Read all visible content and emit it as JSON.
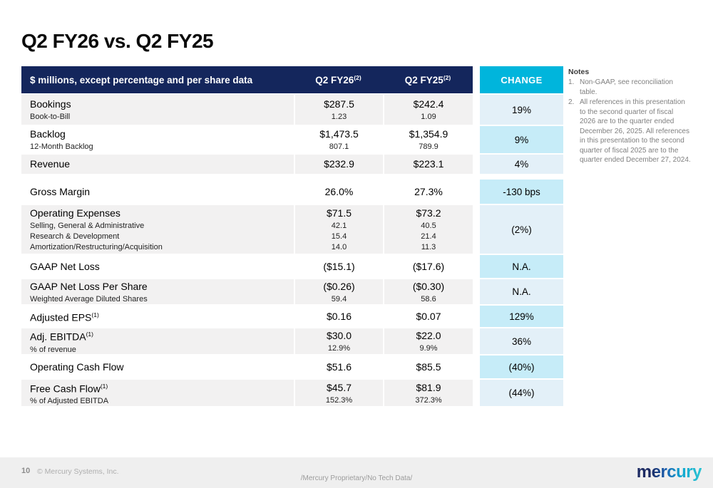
{
  "slide": {
    "title": "Q2 FY26 vs. Q2 FY25",
    "table": {
      "header": {
        "label": "$ millions, except percentage and per share data",
        "col1": "Q2 FY26",
        "col1_sup": "(2)",
        "col2": "Q2 FY25",
        "col2_sup": "(2)",
        "change": "CHANGE"
      },
      "rows": [
        {
          "label": "Bookings",
          "v1": "$287.5",
          "v2": "$242.4",
          "change": "19%",
          "subs": [
            {
              "label": "Book-to-Bill",
              "v1": "1.23",
              "v2": "1.09"
            }
          ]
        },
        {
          "label": "Backlog",
          "v1": "$1,473.5",
          "v2": "$1,354.9",
          "change": "9%",
          "subs": [
            {
              "label": "12-Month Backlog",
              "v1": "807.1",
              "v2": "789.9"
            }
          ]
        },
        {
          "label": "Revenue",
          "v1": "$232.9",
          "v2": "$223.1",
          "change": "4%",
          "subs": []
        },
        {
          "label": "Gross Margin",
          "v1": "26.0%",
          "v2": "27.3%",
          "change": "-130 bps",
          "subs": []
        },
        {
          "label": "Operating Expenses",
          "v1": "$71.5",
          "v2": "$73.2",
          "change": "(2%)",
          "subs": [
            {
              "label": "Selling, General & Administrative",
              "v1": "42.1",
              "v2": "40.5"
            },
            {
              "label": "Research & Development",
              "v1": "15.4",
              "v2": "21.4"
            },
            {
              "label": "Amortization/Restructuring/Acquisition",
              "v1": "14.0",
              "v2": "11.3"
            }
          ]
        },
        {
          "label": "GAAP Net Loss",
          "v1": "($15.1)",
          "v2": "($17.6)",
          "change": "N.A.",
          "subs": []
        },
        {
          "label": "GAAP Net Loss Per Share",
          "v1": "($0.26)",
          "v2": "($0.30)",
          "change": "N.A.",
          "subs": [
            {
              "label": "Weighted Average Diluted Shares",
              "v1": "59.4",
              "v2": "58.6"
            }
          ]
        },
        {
          "label": "Adjusted EPS",
          "sup": "(1)",
          "v1": "$0.16",
          "v2": "$0.07",
          "change": "129%",
          "subs": []
        },
        {
          "label": "Adj. EBITDA",
          "sup": "(1)",
          "v1": "$30.0",
          "v2": "$22.0",
          "change": "36%",
          "subs": [
            {
              "label": "% of revenue",
              "v1": "12.9%",
              "v2": "9.9%"
            }
          ]
        },
        {
          "label": "Operating Cash Flow",
          "v1": "$51.6",
          "v2": "$85.5",
          "change": "(40%)",
          "subs": []
        },
        {
          "label": "Free Cash Flow",
          "sup": "(1)",
          "v1": "$45.7",
          "v2": "$81.9",
          "change": "(44%)",
          "subs": [
            {
              "label": "% of Adjusted EBITDA",
              "v1": "152.3%",
              "v2": "372.3%"
            }
          ]
        }
      ]
    },
    "notes": {
      "title": "Notes",
      "items": [
        {
          "num": "1.",
          "text": "Non-GAAP, see reconciliation table."
        },
        {
          "num": "2.",
          "text": "All references in this presentation to the second quarter of fiscal 2026 are to the quarter ended December 26, 2025. All references in this presentation to the second quarter of fiscal 2025 are to the quarter ended December 27, 2024."
        }
      ]
    },
    "footer": {
      "page": "10",
      "copyright": "© Mercury Systems, Inc.",
      "classification": "/Mercury Proprietary/No Tech Data/",
      "logo": "mercury"
    },
    "colors": {
      "header_navy": "#14265c",
      "change_header_cyan": "#00b5dc",
      "change_cell_light": "#e3f0f8",
      "change_cell_cyan": "#c6ecf8",
      "row_gray": "#f2f1f1"
    }
  }
}
